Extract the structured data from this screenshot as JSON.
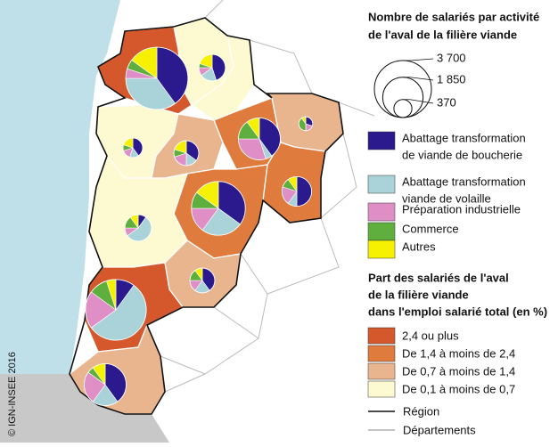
{
  "title_lines": [
    "Nombre de salariés par activité",
    "de l'aval de la filière viande"
  ],
  "size_legend": {
    "ticks": [
      {
        "value": 3700,
        "label": "3 700"
      },
      {
        "value": 1850,
        "label": "1 850"
      },
      {
        "value": 370,
        "label": "370"
      }
    ]
  },
  "activities": [
    {
      "name": [
        "Abattage transformation",
        "de viande de boucherie"
      ],
      "color": "#2b1a8e"
    },
    {
      "name": [
        "Abattage transformation",
        "viande de volaille"
      ],
      "color": "#a9d3d8"
    },
    {
      "name": [
        "Préparation industrielle"
      ],
      "color": "#e08fc6"
    },
    {
      "name": [
        "Commerce"
      ],
      "color": "#5eaf3e"
    },
    {
      "name": [
        "Autres"
      ],
      "color": "#f6f100"
    }
  ],
  "share_title_lines": [
    "Part des salariés de l'aval",
    "de la filière viande",
    "dans l'emploi salarié total (en %)"
  ],
  "share_classes": [
    {
      "label": "2,4 ou plus",
      "color": "#d4582b"
    },
    {
      "label": "De 1,4 à moins de 2,4",
      "color": "#df7b3c"
    },
    {
      "label": "De 0,7 à moins de 1,4",
      "color": "#e9b58f"
    },
    {
      "label": "De 0,1 à moins de 0,7",
      "color": "#fdf9d0"
    }
  ],
  "boundaries": {
    "region": "Région",
    "departements": "Départements"
  },
  "credit": "© IGN-INSEE 2016",
  "pies": [
    {
      "values": [
        1760,
        1540,
        220,
        220,
        660
      ]
    },
    {
      "values": [
        360,
        160,
        80,
        40,
        160
      ]
    },
    {
      "values": [
        176,
        66,
        66,
        44,
        88
      ]
    },
    {
      "values": [
        245,
        105,
        140,
        70,
        140
      ]
    },
    {
      "values": [
        800,
        100,
        600,
        300,
        200
      ]
    },
    {
      "values": [
        66,
        0,
        44,
        88,
        22
      ]
    },
    {
      "values": [
        500,
        100,
        200,
        100,
        100
      ]
    },
    {
      "values": [
        1155,
        825,
        495,
        330,
        495
      ]
    },
    {
      "values": [
        80,
        440,
        80,
        120,
        80
      ]
    },
    {
      "values": [
        280,
        140,
        105,
        105,
        70
      ]
    },
    {
      "values": [
        420,
        2310,
        840,
        420,
        210
      ]
    },
    {
      "values": [
        800,
        400,
        500,
        100,
        200
      ]
    }
  ]
}
